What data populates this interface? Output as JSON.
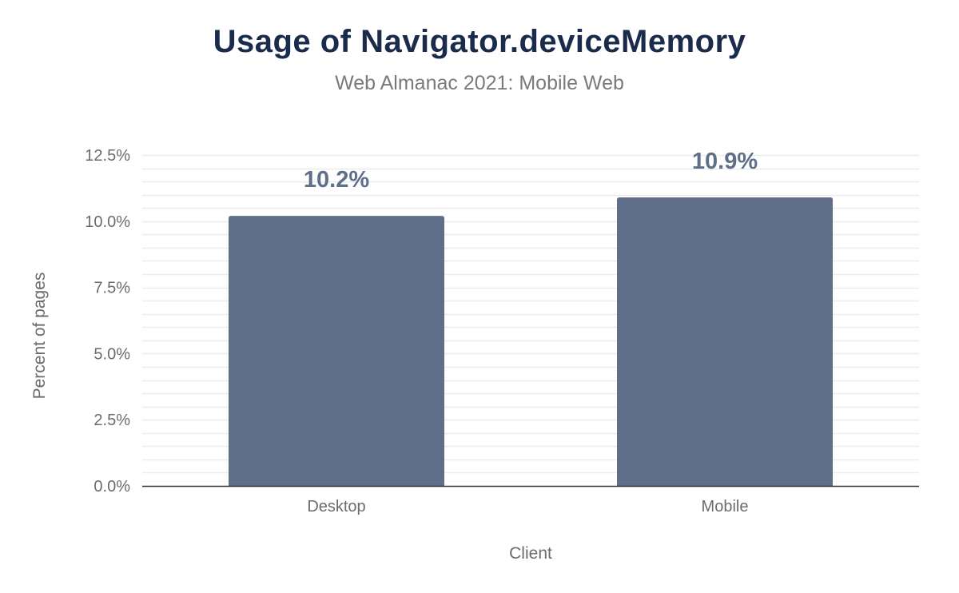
{
  "chart_data": {
    "type": "bar",
    "title": "Usage of Navigator.deviceMemory",
    "subtitle": "Web Almanac 2021: Mobile Web",
    "xlabel": "Client",
    "ylabel": "Percent of pages",
    "categories": [
      "Desktop",
      "Mobile"
    ],
    "values": [
      10.2,
      10.9
    ],
    "data_labels": [
      "10.2%",
      "10.9%"
    ],
    "ylim": [
      0,
      12.5
    ],
    "yticks": [
      0,
      2.5,
      5.0,
      7.5,
      10.0,
      12.5
    ],
    "ytick_labels": [
      "0.0%",
      "2.5%",
      "5.0%",
      "7.5%",
      "10.0%",
      "12.5%"
    ],
    "minor_grid_step": 0.5,
    "grid": true,
    "legend": "none",
    "colors": {
      "bar": "#5f6f8a",
      "title": "#1a2b4b",
      "label": "#5f6f8a",
      "grid": "#ececec",
      "axis": "#333333"
    }
  }
}
